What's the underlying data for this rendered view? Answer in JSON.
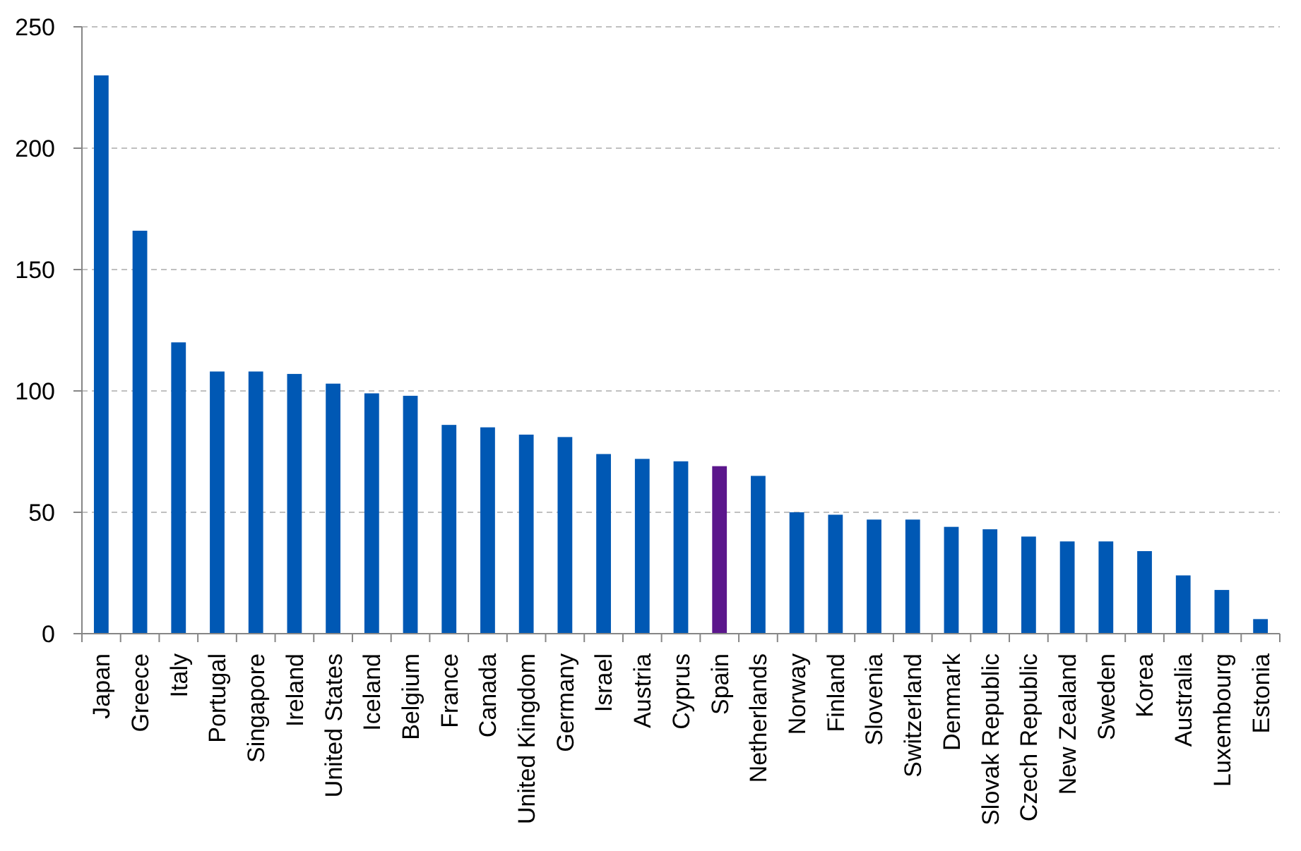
{
  "chart_data": {
    "type": "bar",
    "categories": [
      "Japan",
      "Greece",
      "Italy",
      "Portugal",
      "Singapore",
      "Ireland",
      "United States",
      "Iceland",
      "Belgium",
      "France",
      "Canada",
      "United Kingdom",
      "Germany",
      "Israel",
      "Austria",
      "Cyprus",
      "Spain",
      "Netherlands",
      "Norway",
      "Finland",
      "Slovenia",
      "Switzerland",
      "Denmark",
      "Slovak Republic",
      "Czech Republic",
      "New Zealand",
      "Sweden",
      "Korea",
      "Australia",
      "Luxembourg",
      "Estonia"
    ],
    "values": [
      230,
      166,
      120,
      108,
      108,
      107,
      103,
      99,
      98,
      86,
      85,
      82,
      81,
      74,
      72,
      71,
      69,
      65,
      50,
      49,
      47,
      47,
      44,
      43,
      40,
      38,
      38,
      34,
      24,
      18,
      6
    ],
    "colors": [
      "#0058b4",
      "#0058b4",
      "#0058b4",
      "#0058b4",
      "#0058b4",
      "#0058b4",
      "#0058b4",
      "#0058b4",
      "#0058b4",
      "#0058b4",
      "#0058b4",
      "#0058b4",
      "#0058b4",
      "#0058b4",
      "#0058b4",
      "#0058b4",
      "#5b168c",
      "#0058b4",
      "#0058b4",
      "#0058b4",
      "#0058b4",
      "#0058b4",
      "#0058b4",
      "#0058b4",
      "#0058b4",
      "#0058b4",
      "#0058b4",
      "#0058b4",
      "#0058b4",
      "#0058b4",
      "#0058b4"
    ],
    "ylim": [
      0,
      250
    ],
    "yticks": [
      0,
      50,
      100,
      150,
      200,
      250
    ],
    "grid": "y"
  }
}
